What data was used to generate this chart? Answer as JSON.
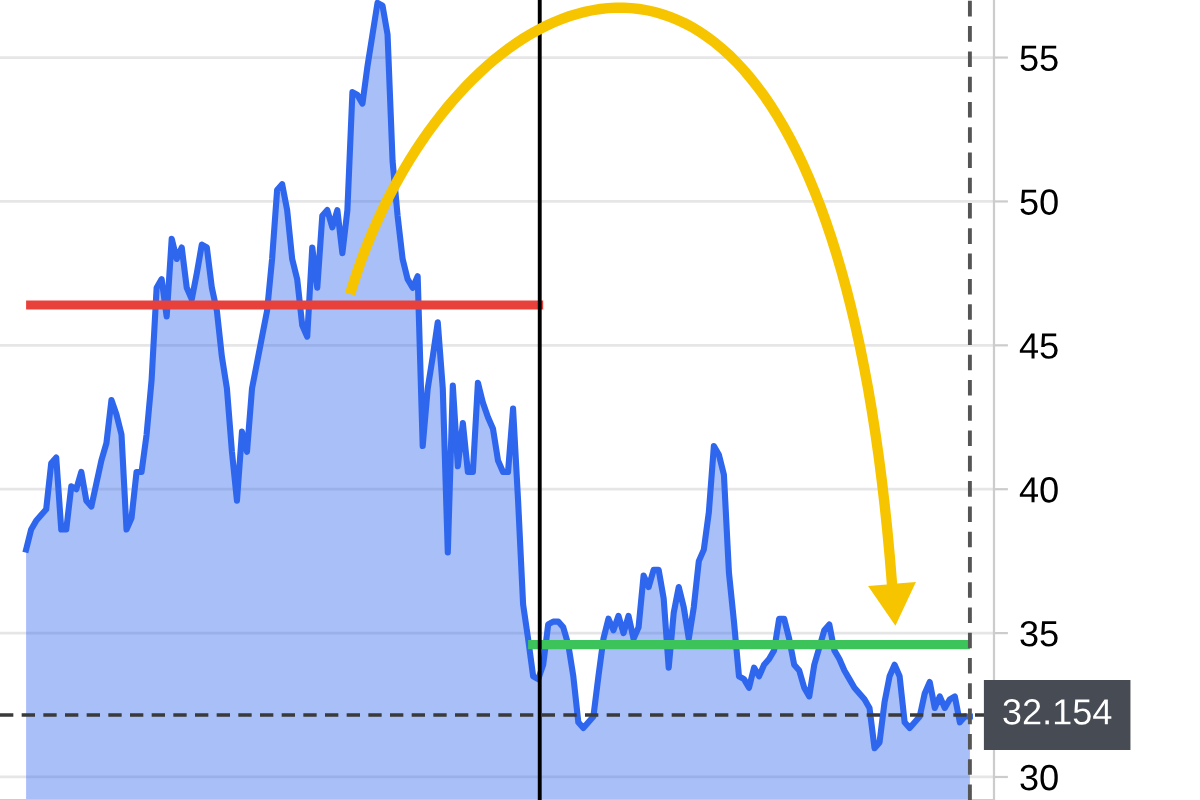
{
  "chart_data": {
    "type": "area",
    "ylim": [
      29.2,
      57
    ],
    "yticks": [
      30,
      35,
      40,
      45,
      50,
      55
    ],
    "tick_labels": "y",
    "grid": "y",
    "categories": [
      null,
      null,
      null,
      null,
      null,
      null,
      null,
      null,
      null,
      null,
      null,
      null,
      null,
      null,
      null,
      null,
      null,
      null,
      null,
      null,
      null,
      null,
      null,
      null,
      null,
      null,
      null,
      null,
      null,
      null,
      null,
      null,
      null,
      null,
      null,
      null,
      null,
      null,
      null,
      null,
      null,
      null,
      null,
      null,
      null,
      null,
      null,
      null,
      null,
      null,
      null,
      null,
      null,
      null,
      null,
      null,
      null,
      null,
      null,
      null,
      null,
      null,
      null,
      null,
      null,
      null,
      null,
      null,
      null,
      null,
      null,
      null,
      null,
      null,
      null,
      null,
      null,
      null,
      null,
      null,
      null,
      null,
      null,
      null,
      null,
      null,
      null,
      null,
      null,
      null,
      null,
      null,
      null,
      null,
      null,
      null,
      null,
      null,
      null,
      null,
      null,
      null,
      null,
      null,
      null,
      null,
      null,
      null,
      null,
      null,
      null,
      null,
      null,
      null,
      null,
      null,
      null,
      null,
      null,
      null,
      null,
      null,
      null,
      null,
      null,
      null,
      null,
      null,
      null,
      null,
      null,
      null,
      null,
      null,
      null,
      null,
      null,
      null,
      null,
      null,
      null,
      null,
      null,
      null,
      null,
      null,
      null,
      null,
      null,
      null,
      null,
      null,
      null,
      null,
      null,
      null,
      null,
      null,
      null,
      null,
      null,
      null,
      null,
      null,
      null,
      null,
      null,
      null,
      null,
      null,
      null,
      null,
      null,
      null,
      null,
      null,
      null,
      null,
      null,
      null,
      null,
      null,
      null,
      null,
      null,
      null,
      null,
      null,
      null
    ],
    "series": [
      {
        "color": "#2f66ee",
        "values": [
          37.9,
          38.6,
          38.9,
          39.1,
          39.3,
          40.9,
          41.1,
          38.6,
          38.6,
          40.1,
          40.0,
          40.6,
          39.6,
          39.4,
          40.2,
          41.0,
          41.6,
          43.1,
          42.6,
          41.9,
          38.6,
          39.0,
          40.6,
          40.6,
          41.9,
          43.8,
          47.0,
          47.3,
          46.0,
          48.7,
          48.0,
          48.4,
          47.0,
          46.6,
          47.5,
          48.5,
          48.4,
          47.0,
          46.2,
          44.6,
          43.5,
          41.3,
          39.6,
          42.0,
          41.3,
          43.5,
          44.4,
          45.3,
          46.2,
          48.0,
          50.4,
          50.6,
          49.7,
          48.0,
          47.3,
          45.7,
          45.3,
          48.4,
          47.0,
          49.5,
          49.7,
          49.1,
          49.7,
          48.2,
          49.7,
          53.8,
          53.7,
          53.4,
          54.7,
          55.8,
          56.9,
          56.8,
          55.8,
          51.4,
          49.5,
          48.0,
          47.3,
          47.0,
          47.4,
          41.5,
          43.5,
          44.6,
          45.8,
          43.5,
          37.8,
          43.6,
          40.8,
          42.3,
          40.6,
          40.6,
          43.7,
          43.0,
          42.5,
          42.1,
          41.0,
          40.6,
          40.6,
          42.8,
          39.6,
          36.0,
          34.8,
          33.5,
          33.4,
          33.9,
          35.3,
          35.4,
          35.4,
          35.2,
          34.6,
          33.5,
          31.9,
          31.7,
          31.9,
          32.1,
          33.5,
          34.8,
          35.5,
          35.1,
          35.6,
          35.0,
          35.6,
          34.8,
          35.2,
          37.0,
          36.6,
          37.2,
          37.2,
          36.2,
          33.8,
          35.7,
          36.6,
          35.9,
          34.8,
          35.9,
          37.5,
          37.9,
          39.2,
          41.5,
          41.2,
          40.5,
          37.1,
          35.4,
          33.5,
          33.4,
          33.1,
          33.8,
          33.5,
          33.9,
          34.1,
          34.4,
          35.5,
          35.5,
          34.8,
          33.9,
          33.7,
          33.1,
          32.8,
          33.9,
          34.5,
          35.1,
          35.3,
          34.4,
          34.1,
          33.7,
          33.4,
          33.1,
          32.9,
          32.7,
          32.4,
          31.0,
          31.2,
          32.6,
          33.5,
          33.9,
          33.5,
          31.9,
          31.7,
          31.9,
          32.1,
          32.9,
          33.3,
          32.4,
          32.8,
          32.4,
          32.7,
          32.8,
          31.9,
          32.1,
          32.1
        ]
      },
      {
        "type": "line",
        "color": "#e8403a",
        "values": [
          46.4,
          46.4,
          46.4,
          46.4,
          46.4,
          46.4,
          46.4,
          46.4,
          46.4,
          46.4,
          46.4,
          46.4,
          46.4,
          46.4,
          46.4,
          46.4,
          46.4,
          46.4,
          46.4,
          46.4,
          46.4,
          46.4,
          46.4,
          46.4,
          46.4,
          46.4,
          46.4,
          46.4,
          46.4,
          46.4,
          46.4,
          46.4,
          46.4,
          46.4,
          46.4,
          46.4,
          46.4,
          46.4,
          46.4,
          46.4,
          46.4,
          46.4,
          46.4,
          46.4,
          46.4,
          46.4,
          46.4,
          46.4,
          46.4,
          46.4,
          46.4,
          46.4,
          46.4,
          46.4,
          46.4,
          46.4,
          46.4,
          46.4,
          46.4,
          46.4,
          46.4,
          46.4,
          46.4,
          46.4,
          46.4,
          46.4,
          46.4,
          46.4,
          46.4,
          46.4,
          46.4,
          46.4,
          46.4,
          46.4,
          46.4,
          46.4,
          46.4,
          46.4,
          46.4,
          46.4,
          46.4,
          46.4,
          46.4,
          46.4,
          46.4,
          46.4,
          46.4,
          46.4,
          46.4,
          46.4,
          46.4,
          46.4,
          46.4,
          46.4,
          46.4,
          46.4,
          46.4,
          46.4,
          46.4,
          46.4,
          46.4,
          46.4,
          46.4,
          46.4,
          null,
          null,
          null,
          null,
          null,
          null,
          null,
          null,
          null,
          null,
          null,
          null,
          null,
          null,
          null,
          null,
          null,
          null,
          null,
          null,
          null,
          null,
          null,
          null,
          null,
          null,
          null,
          null,
          null,
          null,
          null,
          null,
          null,
          null,
          null,
          null,
          null,
          null,
          null,
          null,
          null,
          null,
          null,
          null,
          null,
          null,
          null,
          null,
          null,
          null,
          null,
          null,
          null,
          null,
          null,
          null,
          null,
          null,
          null,
          null,
          null,
          null,
          null,
          null,
          null,
          null,
          null,
          null,
          null,
          null,
          null,
          null,
          null,
          null,
          null,
          null,
          null,
          null,
          null,
          null,
          null,
          null,
          null,
          null,
          null
        ]
      },
      {
        "type": "line",
        "color": "#3cc45a",
        "values": [
          null,
          null,
          null,
          null,
          null,
          null,
          null,
          null,
          null,
          null,
          null,
          null,
          null,
          null,
          null,
          null,
          null,
          null,
          null,
          null,
          null,
          null,
          null,
          null,
          null,
          null,
          null,
          null,
          null,
          null,
          null,
          null,
          null,
          null,
          null,
          null,
          null,
          null,
          null,
          null,
          null,
          null,
          null,
          null,
          null,
          null,
          null,
          null,
          null,
          null,
          null,
          null,
          null,
          null,
          null,
          null,
          null,
          null,
          null,
          null,
          null,
          null,
          null,
          null,
          null,
          null,
          null,
          null,
          null,
          null,
          null,
          null,
          null,
          null,
          null,
          null,
          null,
          null,
          null,
          null,
          null,
          null,
          null,
          null,
          null,
          null,
          null,
          null,
          null,
          null,
          null,
          null,
          null,
          null,
          null,
          null,
          null,
          null,
          null,
          null,
          34.6,
          34.6,
          34.6,
          34.6,
          34.6,
          34.6,
          34.6,
          34.6,
          34.6,
          34.6,
          34.6,
          34.6,
          34.6,
          34.6,
          34.6,
          34.6,
          34.6,
          34.6,
          34.6,
          34.6,
          34.6,
          34.6,
          34.6,
          34.6,
          34.6,
          34.6,
          34.6,
          34.6,
          34.6,
          34.6,
          34.6,
          34.6,
          34.6,
          34.6,
          34.6,
          34.6,
          34.6,
          34.6,
          34.6,
          34.6,
          34.6,
          34.6,
          34.6,
          34.6,
          34.6,
          34.6,
          34.6,
          34.6,
          34.6,
          34.6,
          34.6,
          34.6,
          34.6,
          34.6,
          34.6,
          34.6,
          34.6,
          34.6,
          34.6,
          34.6,
          34.6,
          34.6,
          34.6,
          34.6,
          34.6,
          34.6,
          34.6,
          34.6,
          34.6,
          34.6,
          34.6,
          34.6,
          34.6,
          34.6,
          34.6,
          34.6,
          34.6,
          34.6,
          34.6,
          34.6,
          34.6,
          34.6,
          34.6,
          34.6,
          34.6,
          34.6,
          34.6,
          34.6,
          34.6
        ]
      }
    ],
    "ref_lines": [
      {
        "axis": "y",
        "value": 32.154,
        "label": "32.154",
        "color": "#3a3a3a",
        "line_style": "dashed"
      }
    ]
  }
}
